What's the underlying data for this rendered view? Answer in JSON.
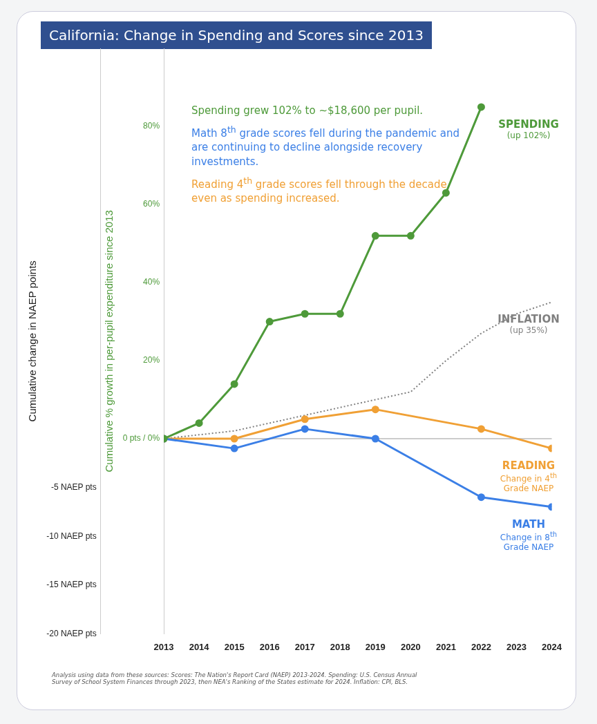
{
  "chart_data": {
    "type": "line",
    "title": "California: Change in Spending and Scores since 2013",
    "ylabel": "Cumulative % growth in per-pupil expenditure since 2013",
    "y2label": "Cumulative change in NAEP points",
    "categories": [
      "2013",
      "2014",
      "2015",
      "2016",
      "2017",
      "2018",
      "2019",
      "2020",
      "2021",
      "2022",
      "2023",
      "2024"
    ],
    "series": [
      {
        "name": "SPENDING",
        "color": "#4e9a3a",
        "marker": "circle",
        "values": [
          0,
          4,
          14,
          30,
          32,
          32,
          52,
          52,
          63,
          85,
          null,
          null
        ]
      },
      {
        "name": "MATH",
        "color": "#3b7fe6",
        "marker": "circle",
        "axis": "y2",
        "values": [
          0,
          null,
          -1,
          null,
          1,
          null,
          0,
          null,
          null,
          -6,
          null,
          -7
        ]
      },
      {
        "name": "READING",
        "color": "#f0a035",
        "marker": "circle",
        "axis": "y2",
        "values": [
          0,
          null,
          0,
          null,
          2,
          null,
          3,
          null,
          null,
          1,
          null,
          -1
        ]
      },
      {
        "name": "INFLATION",
        "color": "#808080",
        "marker": "none",
        "line_style": "dotted",
        "values": [
          0,
          1,
          2,
          4,
          6,
          8,
          10,
          12,
          20,
          27,
          32,
          35
        ]
      }
    ],
    "ylim": [
      -50,
      100
    ],
    "yticks": [
      {
        "value": 0,
        "label": "0 pts / 0%"
      },
      {
        "value": 20,
        "label": "20%"
      },
      {
        "value": 40,
        "label": "40%"
      },
      {
        "value": 60,
        "label": "60%"
      },
      {
        "value": 80,
        "label": "80%"
      }
    ],
    "y2lim": [
      -20,
      40
    ],
    "y2ticks": [
      {
        "value": -5,
        "label": "-5 NAEP pts"
      },
      {
        "value": -10,
        "label": "-10 NAEP pts"
      },
      {
        "value": -15,
        "label": "-15 NAEP pts"
      },
      {
        "value": -20,
        "label": "-20 NAEP pts"
      }
    ],
    "ref_lines": [
      {
        "axis": "y",
        "value": 0,
        "color": "#999999"
      }
    ],
    "grid": false,
    "legend": false,
    "annotations": [
      "(up 102%)",
      "Change in 8$^{th}$ Grade NAEP",
      "Change in 4$^{th}$ Grade NAEP",
      "(up 35%)",
      "Spending grew 102% to ~$18,600 per pupil.",
      "Math 8$^{th}$ grade scores fell during the pandemic and are continuing to decline alongside recovery investments.",
      "Reading 4$^{th}$ grade scores fell through the decade even as spending increased.",
      "Analysis using data from these sources: Scores: The Nation's Report Card (NAEP) 2013-2024. Spending: U.S. Census Annual Survey of School System Finances through 2023, then NEA's Ranking of the States estimate for 2024. Inflation: CPI, BLS."
    ]
  }
}
